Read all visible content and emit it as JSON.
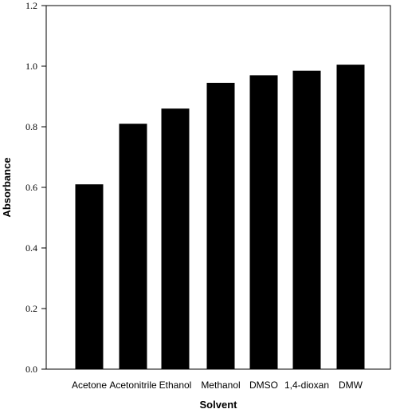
{
  "chart_data": {
    "type": "bar",
    "categories": [
      "Acetone",
      "Acetonitrile",
      "Ethanol",
      "Methanol",
      "DMSO",
      "1,4-dioxan",
      "DMW"
    ],
    "values": [
      0.61,
      0.81,
      0.86,
      0.945,
      0.97,
      0.985,
      1.005
    ],
    "xlabel": "Solvent",
    "ylabel": "Absorbance",
    "ylim": [
      0,
      1.2
    ],
    "yticks": [
      "0.0",
      "0.2",
      "0.4",
      "0.6",
      "0.8",
      "1.0",
      "1.2"
    ],
    "grid": false,
    "bar_color": "#000000"
  }
}
